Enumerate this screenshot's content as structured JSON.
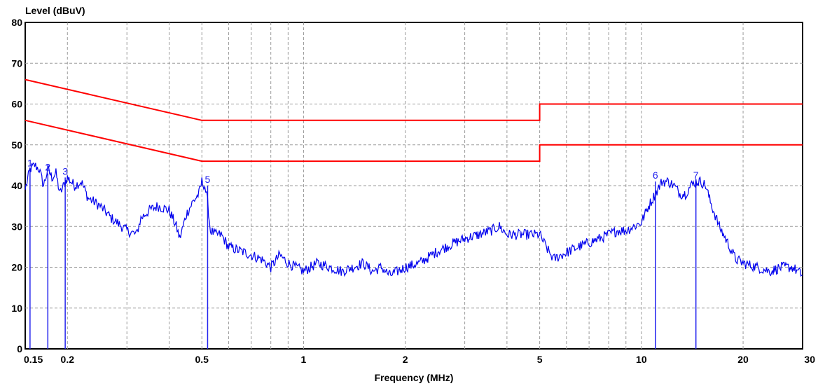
{
  "chart_data": {
    "type": "line",
    "title": "",
    "ylabel": "Level (dBuV)",
    "xlabel": "Frequency (MHz)",
    "xscale": "log",
    "xlim": [
      0.15,
      30
    ],
    "ylim": [
      0,
      80
    ],
    "grid": true,
    "legend": "none",
    "y_ticks": [
      0,
      10,
      20,
      30,
      40,
      50,
      60,
      70,
      80
    ],
    "x_tick_labels": [
      {
        "value": 0.15,
        "label": "0.15"
      },
      {
        "value": 0.2,
        "label": "0.2"
      },
      {
        "value": 0.5,
        "label": "0.5"
      },
      {
        "value": 1,
        "label": "1"
      },
      {
        "value": 2,
        "label": "2"
      },
      {
        "value": 5,
        "label": "5"
      },
      {
        "value": 10,
        "label": "10"
      },
      {
        "value": 20,
        "label": "20"
      },
      {
        "value": 30,
        "label": "30"
      }
    ],
    "x_gridlines": [
      0.2,
      0.3,
      0.4,
      0.5,
      0.6,
      0.7,
      0.8,
      0.9,
      1,
      2,
      3,
      4,
      5,
      6,
      7,
      8,
      9,
      10,
      20
    ],
    "limit_lines": [
      {
        "color": "#ff0000",
        "points": [
          [
            0.15,
            66
          ],
          [
            0.5,
            56
          ],
          [
            5,
            56
          ],
          [
            5,
            60
          ],
          [
            30,
            60
          ]
        ]
      },
      {
        "color": "#ff0000",
        "points": [
          [
            0.15,
            56
          ],
          [
            0.5,
            46
          ],
          [
            5,
            46
          ],
          [
            5,
            50
          ],
          [
            30,
            50
          ]
        ]
      }
    ],
    "series": [
      {
        "color": "#0000ee",
        "x": [
          0.15,
          0.155,
          0.16,
          0.165,
          0.17,
          0.175,
          0.18,
          0.185,
          0.19,
          0.2,
          0.21,
          0.22,
          0.23,
          0.24,
          0.25,
          0.27,
          0.28,
          0.3,
          0.32,
          0.33,
          0.35,
          0.37,
          0.4,
          0.42,
          0.43,
          0.45,
          0.47,
          0.49,
          0.5,
          0.51,
          0.52,
          0.53,
          0.55,
          0.57,
          0.6,
          0.65,
          0.7,
          0.75,
          0.8,
          0.85,
          0.9,
          1.0,
          1.1,
          1.2,
          1.3,
          1.4,
          1.5,
          1.6,
          1.7,
          1.8,
          1.9,
          2.0,
          2.2,
          2.5,
          2.8,
          3.0,
          3.3,
          3.6,
          3.8,
          4.0,
          4.5,
          5.0,
          5.3,
          5.5,
          5.8,
          6.5,
          7.0,
          7.5,
          8.0,
          8.5,
          9.0,
          10.0,
          10.5,
          11.0,
          11.5,
          12.0,
          12.5,
          13.0,
          13.5,
          14.0,
          14.5,
          15.0,
          15.5,
          16.0,
          17.0,
          18.0,
          19.0,
          20.0,
          22.0,
          24.0,
          26.0,
          28.0,
          30.0
        ],
        "values": [
          39,
          44,
          45,
          44,
          40,
          44,
          42,
          43,
          38,
          42,
          40,
          41,
          37,
          36,
          35,
          32,
          31,
          29,
          28,
          32,
          34,
          35,
          34,
          30,
          27,
          33,
          36,
          38,
          41,
          40,
          36,
          29,
          28,
          28,
          25,
          24,
          23,
          22,
          20,
          23,
          21,
          19,
          21,
          20,
          19,
          20,
          21,
          19,
          20,
          18,
          19,
          20,
          21,
          24,
          26,
          27,
          28,
          29,
          30,
          28,
          28,
          28,
          24,
          22,
          23,
          25,
          26,
          27,
          28,
          29,
          29,
          31,
          35,
          38,
          41,
          41,
          40,
          38,
          38,
          40,
          41,
          41,
          40,
          36,
          30,
          26,
          22,
          21,
          20,
          19,
          20,
          20,
          18
        ]
      }
    ],
    "markers": [
      {
        "label": "1",
        "x": 0.155,
        "y": 44
      },
      {
        "label": "2",
        "x": 0.175,
        "y": 43
      },
      {
        "label": "3",
        "x": 0.197,
        "y": 42
      },
      {
        "label": "5",
        "x": 0.52,
        "y": 40
      },
      {
        "label": "6",
        "x": 11.0,
        "y": 41
      },
      {
        "label": "7",
        "x": 14.5,
        "y": 41
      }
    ]
  }
}
